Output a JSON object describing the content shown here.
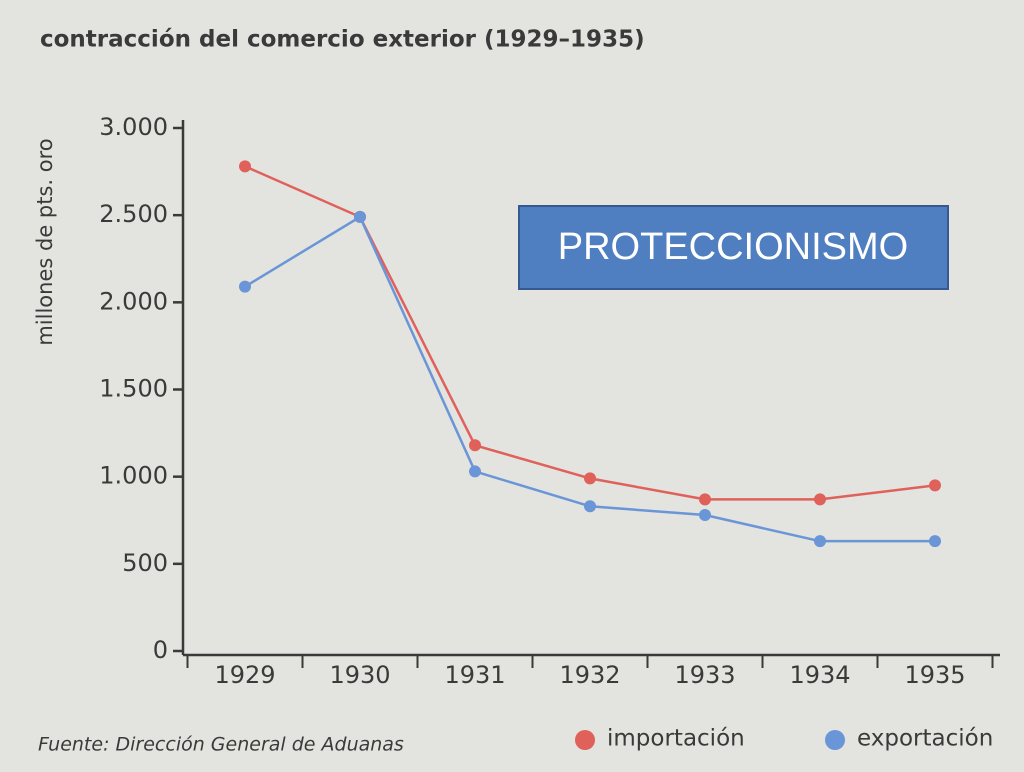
{
  "chart_data": {
    "type": "line",
    "title": "contracción del comercio exterior (1929–1935)",
    "y_label": "millones de pts. oro",
    "source": "Fuente: Dirección General de Aduanas",
    "annotation": "PROTECCIONISMO",
    "categories": [
      "1929",
      "1930",
      "1931",
      "1932",
      "1933",
      "1934",
      "1935"
    ],
    "series": [
      {
        "name": "importación",
        "color": "#e0605a",
        "values": [
          2780,
          2490,
          1180,
          990,
          870,
          870,
          950
        ]
      },
      {
        "name": "exportación",
        "color": "#6a95d6",
        "values": [
          2090,
          2490,
          1030,
          830,
          780,
          630,
          630
        ]
      }
    ],
    "ylim": [
      0,
      3000
    ],
    "yticks": [
      0,
      500,
      {
        "value": 1000,
        "label": "1.000"
      },
      {
        "value": 1500,
        "label": "1.500"
      },
      {
        "value": 2000,
        "label": "2.000"
      },
      {
        "value": 2500,
        "label": "2.500"
      },
      {
        "value": 3000,
        "label": "3.000"
      }
    ],
    "legend": "bottom-right",
    "grid": false
  }
}
